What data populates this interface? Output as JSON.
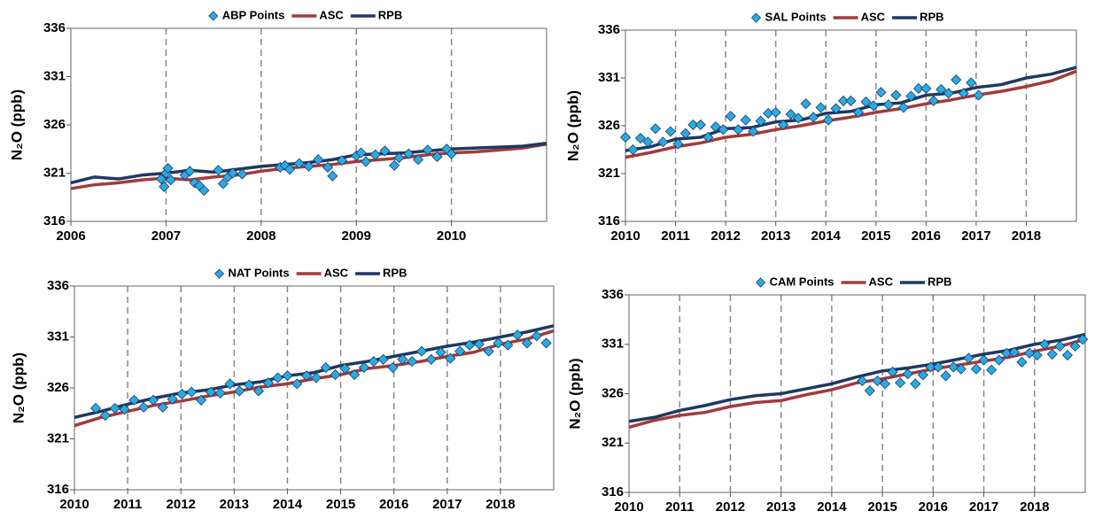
{
  "chart_data": [
    {
      "type": "line",
      "y_label": "N₂O (ppb)",
      "xlim": [
        2006,
        2011
      ],
      "xticks": [
        2006,
        2007,
        2008,
        2009,
        2010
      ],
      "ylim": [
        316,
        336
      ],
      "yticks": [
        316,
        321,
        326,
        331,
        336
      ],
      "grid": true,
      "series": [
        {
          "name": "ABP Points",
          "type": "scatter",
          "color": "#29abe2",
          "x": [
            2006.95,
            2006.98,
            2007.0,
            2007.02,
            2007.05,
            2007.2,
            2007.25,
            2007.3,
            2007.35,
            2007.4,
            2007.55,
            2007.6,
            2007.65,
            2007.7,
            2007.8,
            2008.2,
            2008.25,
            2008.3,
            2008.4,
            2008.5,
            2008.6,
            2008.7,
            2008.75,
            2008.85,
            2009.0,
            2009.05,
            2009.1,
            2009.2,
            2009.3,
            2009.4,
            2009.45,
            2009.55,
            2009.65,
            2009.75,
            2009.85,
            2009.95,
            2010.0
          ],
          "values": [
            320.4,
            319.6,
            321.0,
            321.5,
            320.3,
            320.8,
            321.2,
            320.0,
            319.7,
            319.2,
            321.3,
            319.9,
            320.6,
            321.0,
            320.9,
            321.6,
            321.8,
            321.4,
            322.0,
            321.7,
            322.4,
            321.6,
            320.7,
            322.3,
            322.8,
            323.1,
            322.2,
            322.9,
            323.3,
            321.8,
            322.6,
            323.0,
            322.4,
            323.4,
            322.7,
            323.5,
            323.0
          ]
        },
        {
          "name": "ASC",
          "type": "line",
          "color": "#a33a3a",
          "x": [
            2006,
            2006.25,
            2006.5,
            2006.75,
            2007,
            2007.25,
            2007.5,
            2007.75,
            2008,
            2008.25,
            2008.5,
            2008.75,
            2009,
            2009.25,
            2009.5,
            2009.75,
            2010,
            2010.25,
            2010.5,
            2010.75,
            2011
          ],
          "values": [
            319.4,
            319.8,
            320.0,
            320.3,
            320.5,
            320.3,
            320.6,
            320.8,
            321.2,
            321.5,
            321.7,
            321.9,
            322.2,
            322.4,
            322.6,
            322.9,
            323.1,
            323.2,
            323.4,
            323.6,
            324.0
          ]
        },
        {
          "name": "RPB",
          "type": "line",
          "color": "#1f3864",
          "x": [
            2006,
            2006.25,
            2006.5,
            2006.75,
            2007,
            2007.25,
            2007.5,
            2007.75,
            2008,
            2008.25,
            2008.5,
            2008.75,
            2009,
            2009.25,
            2009.5,
            2009.75,
            2010,
            2010.25,
            2010.5,
            2010.75,
            2011
          ],
          "values": [
            320.0,
            320.6,
            320.4,
            320.8,
            321.0,
            321.3,
            321.1,
            321.4,
            321.7,
            321.9,
            322.1,
            322.4,
            322.9,
            323.0,
            323.1,
            323.3,
            323.5,
            323.6,
            323.7,
            323.8,
            324.1
          ]
        }
      ]
    },
    {
      "type": "line",
      "y_label": "N₂O (ppb)",
      "xlim": [
        2010,
        2019
      ],
      "xticks": [
        2010,
        2011,
        2012,
        2013,
        2014,
        2015,
        2016,
        2017,
        2018
      ],
      "ylim": [
        316,
        336
      ],
      "yticks": [
        316,
        321,
        326,
        331,
        336
      ],
      "grid": true,
      "series": [
        {
          "name": "SAL Points",
          "type": "scatter",
          "color": "#29abe2",
          "x": [
            2010.0,
            2010.15,
            2010.3,
            2010.45,
            2010.6,
            2010.75,
            2010.9,
            2011.05,
            2011.2,
            2011.35,
            2011.5,
            2011.65,
            2011.8,
            2011.95,
            2012.1,
            2012.25,
            2012.4,
            2012.55,
            2012.7,
            2012.85,
            2013.0,
            2013.15,
            2013.3,
            2013.45,
            2013.6,
            2013.75,
            2013.9,
            2014.05,
            2014.2,
            2014.35,
            2014.5,
            2014.65,
            2014.8,
            2014.95,
            2015.1,
            2015.25,
            2015.4,
            2015.55,
            2015.7,
            2015.85,
            2016.0,
            2016.15,
            2016.3,
            2016.45,
            2016.6,
            2016.75,
            2016.9,
            2017.05
          ],
          "values": [
            324.8,
            323.5,
            324.7,
            324.3,
            325.7,
            324.3,
            325.4,
            324.1,
            325.2,
            326.1,
            326.1,
            324.8,
            325.9,
            325.6,
            327.0,
            325.6,
            326.6,
            325.4,
            326.5,
            327.3,
            327.4,
            326.1,
            327.2,
            326.8,
            328.3,
            326.9,
            327.9,
            326.6,
            327.8,
            328.6,
            328.6,
            327.4,
            328.5,
            328.1,
            329.5,
            328.2,
            329.2,
            327.9,
            329.1,
            329.9,
            329.9,
            328.6,
            329.8,
            329.4,
            330.8,
            329.4,
            330.5,
            329.2
          ]
        },
        {
          "name": "ASC",
          "type": "line",
          "color": "#a33a3a",
          "x": [
            2010,
            2010.5,
            2011,
            2011.5,
            2012,
            2012.5,
            2013,
            2013.5,
            2014,
            2014.5,
            2015,
            2015.5,
            2016,
            2016.5,
            2017,
            2017.5,
            2018,
            2018.5,
            2019
          ],
          "values": [
            322.7,
            323.2,
            323.8,
            324.2,
            324.8,
            325.1,
            325.6,
            326.0,
            326.5,
            326.9,
            327.4,
            327.8,
            328.3,
            328.7,
            329.2,
            329.6,
            330.1,
            330.7,
            331.7
          ]
        },
        {
          "name": "RPB",
          "type": "line",
          "color": "#1f3864",
          "x": [
            2010,
            2010.5,
            2011,
            2011.5,
            2012,
            2012.5,
            2013,
            2013.5,
            2014,
            2014.5,
            2015,
            2015.5,
            2016,
            2016.5,
            2017,
            2017.5,
            2018,
            2018.5,
            2019
          ],
          "values": [
            323.4,
            323.8,
            324.6,
            324.8,
            325.7,
            325.8,
            326.4,
            326.6,
            327.3,
            327.5,
            328.2,
            328.4,
            329.2,
            329.4,
            330.0,
            330.3,
            331.0,
            331.4,
            332.1
          ]
        }
      ]
    },
    {
      "type": "line",
      "y_label": "N₂O (ppb)",
      "xlim": [
        2010,
        2019
      ],
      "xticks": [
        2010,
        2011,
        2012,
        2013,
        2014,
        2015,
        2016,
        2017,
        2018
      ],
      "ylim": [
        316,
        336
      ],
      "yticks": [
        316,
        321,
        326,
        331,
        336
      ],
      "grid": true,
      "series": [
        {
          "name": "NAT Points",
          "type": "scatter",
          "color": "#29abe2",
          "x": [
            2010.4,
            2010.58,
            2010.76,
            2010.94,
            2011.12,
            2011.3,
            2011.48,
            2011.66,
            2011.84,
            2012.02,
            2012.2,
            2012.38,
            2012.56,
            2012.74,
            2012.92,
            2013.1,
            2013.28,
            2013.46,
            2013.64,
            2013.82,
            2014.0,
            2014.18,
            2014.36,
            2014.54,
            2014.72,
            2014.9,
            2015.08,
            2015.26,
            2015.44,
            2015.62,
            2015.8,
            2015.98,
            2016.16,
            2016.34,
            2016.52,
            2016.7,
            2016.88,
            2017.06,
            2017.24,
            2017.42,
            2017.6,
            2017.78,
            2017.96,
            2018.14,
            2018.32,
            2018.5,
            2018.68,
            2018.86
          ],
          "values": [
            324.0,
            323.3,
            324.0,
            323.9,
            324.8,
            324.1,
            324.8,
            324.1,
            324.9,
            325.4,
            325.6,
            324.8,
            325.6,
            325.5,
            326.4,
            325.7,
            326.3,
            325.7,
            326.5,
            327.0,
            327.2,
            326.4,
            327.2,
            327.0,
            328.0,
            327.3,
            327.9,
            327.3,
            328.0,
            328.6,
            328.8,
            328.0,
            328.8,
            328.6,
            329.6,
            328.8,
            329.5,
            328.9,
            329.6,
            330.2,
            330.3,
            329.6,
            330.4,
            330.2,
            331.2,
            330.4,
            331.1,
            330.4
          ]
        },
        {
          "name": "ASC",
          "type": "line",
          "color": "#a33a3a",
          "x": [
            2010,
            2010.5,
            2011,
            2011.5,
            2012,
            2012.5,
            2013,
            2013.5,
            2014,
            2014.5,
            2015,
            2015.5,
            2016,
            2016.5,
            2017,
            2017.5,
            2018,
            2018.5,
            2019
          ],
          "values": [
            322.3,
            323.1,
            323.7,
            324.3,
            324.7,
            325.2,
            325.6,
            326.1,
            326.4,
            326.9,
            327.3,
            327.9,
            328.2,
            328.6,
            329.1,
            329.5,
            330.3,
            330.8,
            331.6
          ]
        },
        {
          "name": "RPB",
          "type": "line",
          "color": "#1f3864",
          "x": [
            2010,
            2010.5,
            2011,
            2011.5,
            2012,
            2012.5,
            2013,
            2013.5,
            2014,
            2014.5,
            2015,
            2015.5,
            2016,
            2016.5,
            2017,
            2017.5,
            2018,
            2018.5,
            2019
          ],
          "values": [
            323.1,
            323.7,
            324.4,
            325.0,
            325.5,
            325.8,
            326.3,
            326.6,
            327.2,
            327.5,
            328.2,
            328.6,
            329.1,
            329.6,
            330.1,
            330.5,
            331.0,
            331.5,
            332.1
          ]
        }
      ]
    },
    {
      "type": "line",
      "y_label": "N₂O (ppb)",
      "xlim": [
        2010,
        2019
      ],
      "xticks": [
        2010,
        2011,
        2012,
        2013,
        2014,
        2015,
        2016,
        2017,
        2018
      ],
      "ylim": [
        316,
        336
      ],
      "yticks": [
        316,
        321,
        326,
        331,
        336
      ],
      "grid": true,
      "series": [
        {
          "name": "CAM Points",
          "type": "scatter",
          "color": "#29abe2",
          "x": [
            2014.6,
            2014.75,
            2014.9,
            2015.05,
            2015.2,
            2015.35,
            2015.5,
            2015.65,
            2015.8,
            2015.95,
            2016.1,
            2016.25,
            2016.4,
            2016.55,
            2016.7,
            2016.85,
            2017.0,
            2017.15,
            2017.3,
            2017.45,
            2017.6,
            2017.75,
            2017.9,
            2018.05,
            2018.2,
            2018.35,
            2018.5,
            2018.65,
            2018.8,
            2018.95
          ],
          "values": [
            327.3,
            326.3,
            327.3,
            327.0,
            328.2,
            327.1,
            328.0,
            327.0,
            327.9,
            328.7,
            328.7,
            327.8,
            328.7,
            328.5,
            329.6,
            328.5,
            329.4,
            328.4,
            329.4,
            330.1,
            330.2,
            329.2,
            330.1,
            329.9,
            331.0,
            330.0,
            330.8,
            329.9,
            330.8,
            331.5
          ]
        },
        {
          "name": "ASC",
          "type": "line",
          "color": "#a33a3a",
          "x": [
            2010,
            2010.5,
            2011,
            2011.5,
            2012,
            2012.5,
            2013,
            2013.5,
            2014,
            2014.5,
            2015,
            2015.5,
            2016,
            2016.5,
            2017,
            2017.5,
            2018,
            2018.5,
            2019
          ],
          "values": [
            322.6,
            323.3,
            323.8,
            324.1,
            324.7,
            325.1,
            325.3,
            325.9,
            326.4,
            327.1,
            327.5,
            328.0,
            328.5,
            328.9,
            329.3,
            329.7,
            330.3,
            330.8,
            331.5
          ]
        },
        {
          "name": "RPB",
          "type": "line",
          "color": "#1f3864",
          "x": [
            2010,
            2010.5,
            2011,
            2011.5,
            2012,
            2012.5,
            2013,
            2013.5,
            2014,
            2014.5,
            2015,
            2015.5,
            2016,
            2016.5,
            2017,
            2017.5,
            2018,
            2018.5,
            2019
          ],
          "values": [
            323.2,
            323.6,
            324.3,
            324.8,
            325.4,
            325.8,
            326.0,
            326.5,
            327.0,
            327.7,
            328.3,
            328.6,
            329.0,
            329.5,
            330.0,
            330.4,
            331.0,
            331.4,
            332.0
          ]
        }
      ]
    }
  ]
}
